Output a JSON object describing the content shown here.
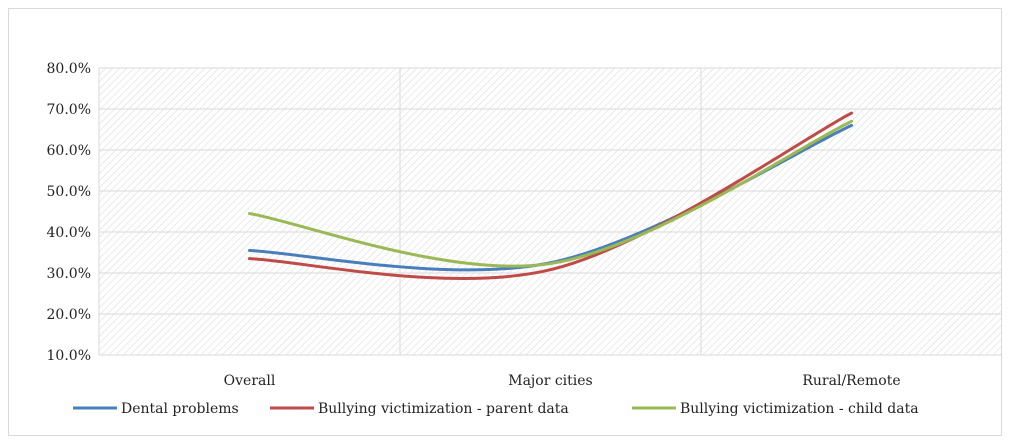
{
  "chart_data": {
    "type": "line",
    "smooth": true,
    "categories": [
      "Overall",
      "Major cities",
      "Rural/Remote"
    ],
    "ylim": [
      10,
      80
    ],
    "yticks": [
      10,
      20,
      30,
      40,
      50,
      60,
      70,
      80
    ],
    "ytick_labels": [
      "10.0%",
      "20.0%",
      "30.0%",
      "40.0%",
      "50.0%",
      "60.0%",
      "70.0%",
      "80.0%"
    ],
    "grid": true,
    "plot_fill": "hatched",
    "legend_position": "bottom",
    "series": [
      {
        "name": "Dental problems",
        "color": "#4a7ebb",
        "values": [
          35.5,
          32.5,
          66.0
        ]
      },
      {
        "name": "Bullying victimization - parent data",
        "color": "#be4b48",
        "values": [
          33.5,
          30.8,
          69.0
        ]
      },
      {
        "name": "Bullying victimization - child data",
        "color": "#98b954",
        "values": [
          44.5,
          32.3,
          67.0
        ]
      }
    ]
  }
}
